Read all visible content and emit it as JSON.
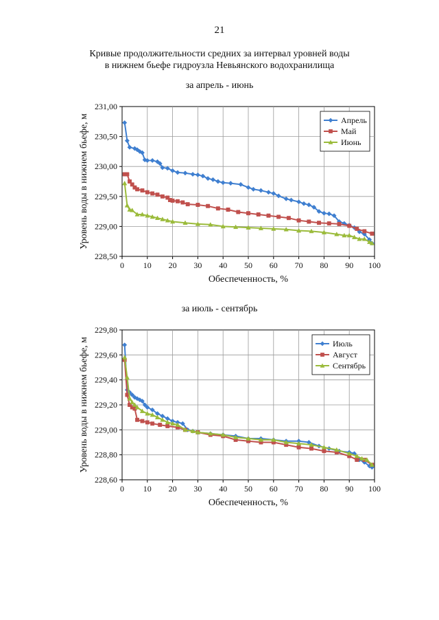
{
  "page": {
    "number": "21",
    "title_line1": "Кривые продолжительности средних за интервал уровней воды",
    "title_line2": "в нижнем бьефе гидроузла Невьянского водохранилища"
  },
  "colors": {
    "blue": "#3f7fd0",
    "red": "#c0504d",
    "green": "#9bbb3b"
  },
  "chart_data": [
    {
      "type": "line",
      "title": "за апрель - июнь",
      "xlabel": "Обеспеченность, %",
      "ylabel": "Уровень воды в нижнем бьефе, м",
      "xlim": [
        0,
        100
      ],
      "ylim": [
        228.5,
        231.0
      ],
      "xticks": [
        "0",
        "10",
        "20",
        "30",
        "40",
        "50",
        "60",
        "70",
        "80",
        "90",
        "100"
      ],
      "yticks": [
        "228,50",
        "229,00",
        "229,50",
        "230,00",
        "230,50",
        "231,00"
      ],
      "legend": "top-right",
      "series": [
        {
          "name": "Апрель",
          "color": "#3f7fd0",
          "marker": "diamond",
          "points": [
            [
              1,
              230.73
            ],
            [
              2,
              230.43
            ],
            [
              3,
              230.32
            ],
            [
              5,
              230.3
            ],
            [
              6,
              230.28
            ],
            [
              7,
              230.25
            ],
            [
              8,
              230.23
            ],
            [
              9,
              230.11
            ],
            [
              10,
              230.1
            ],
            [
              12,
              230.1
            ],
            [
              14,
              230.08
            ],
            [
              15,
              230.05
            ],
            [
              16,
              229.98
            ],
            [
              18,
              229.97
            ],
            [
              20,
              229.93
            ],
            [
              22,
              229.9
            ],
            [
              25,
              229.89
            ],
            [
              28,
              229.87
            ],
            [
              30,
              229.86
            ],
            [
              32,
              229.84
            ],
            [
              34,
              229.8
            ],
            [
              36,
              229.78
            ],
            [
              38,
              229.75
            ],
            [
              40,
              229.73
            ],
            [
              43,
              229.72
            ],
            [
              47,
              229.7
            ],
            [
              50,
              229.65
            ],
            [
              52,
              229.62
            ],
            [
              55,
              229.6
            ],
            [
              58,
              229.57
            ],
            [
              60,
              229.55
            ],
            [
              62,
              229.51
            ],
            [
              65,
              229.46
            ],
            [
              67,
              229.44
            ],
            [
              70,
              229.41
            ],
            [
              72,
              229.38
            ],
            [
              74,
              229.36
            ],
            [
              76,
              229.32
            ],
            [
              78,
              229.25
            ],
            [
              80,
              229.22
            ],
            [
              82,
              229.21
            ],
            [
              84,
              229.18
            ],
            [
              86,
              229.08
            ],
            [
              88,
              229.05
            ],
            [
              90,
              229.02
            ],
            [
              92,
              228.98
            ],
            [
              94,
              228.91
            ],
            [
              96,
              228.87
            ],
            [
              98,
              228.78
            ],
            [
              99,
              228.72
            ]
          ]
        },
        {
          "name": "Май",
          "color": "#c0504d",
          "marker": "square",
          "points": [
            [
              1,
              229.87
            ],
            [
              2,
              229.87
            ],
            [
              3,
              229.75
            ],
            [
              4,
              229.7
            ],
            [
              5,
              229.65
            ],
            [
              6,
              229.62
            ],
            [
              8,
              229.6
            ],
            [
              10,
              229.57
            ],
            [
              12,
              229.55
            ],
            [
              14,
              229.53
            ],
            [
              16,
              229.5
            ],
            [
              18,
              229.48
            ],
            [
              19,
              229.44
            ],
            [
              20,
              229.43
            ],
            [
              22,
              229.42
            ],
            [
              24,
              229.4
            ],
            [
              26,
              229.37
            ],
            [
              30,
              229.36
            ],
            [
              34,
              229.34
            ],
            [
              38,
              229.3
            ],
            [
              42,
              229.28
            ],
            [
              46,
              229.24
            ],
            [
              50,
              229.22
            ],
            [
              54,
              229.2
            ],
            [
              58,
              229.18
            ],
            [
              62,
              229.16
            ],
            [
              66,
              229.14
            ],
            [
              70,
              229.1
            ],
            [
              74,
              229.08
            ],
            [
              78,
              229.06
            ],
            [
              82,
              229.05
            ],
            [
              86,
              229.04
            ],
            [
              90,
              229.01
            ],
            [
              93,
              228.96
            ],
            [
              96,
              228.92
            ],
            [
              99,
              228.88
            ]
          ]
        },
        {
          "name": "Июнь",
          "color": "#9bbb3b",
          "marker": "triangle",
          "points": [
            [
              1,
              229.72
            ],
            [
              2,
              229.35
            ],
            [
              3,
              229.28
            ],
            [
              4,
              229.27
            ],
            [
              6,
              229.2
            ],
            [
              8,
              229.2
            ],
            [
              10,
              229.18
            ],
            [
              12,
              229.16
            ],
            [
              14,
              229.14
            ],
            [
              16,
              229.12
            ],
            [
              18,
              229.1
            ],
            [
              20,
              229.08
            ],
            [
              25,
              229.06
            ],
            [
              30,
              229.04
            ],
            [
              35,
              229.03
            ],
            [
              40,
              229.0
            ],
            [
              45,
              228.99
            ],
            [
              50,
              228.98
            ],
            [
              55,
              228.97
            ],
            [
              60,
              228.96
            ],
            [
              65,
              228.95
            ],
            [
              70,
              228.93
            ],
            [
              75,
              228.92
            ],
            [
              80,
              228.9
            ],
            [
              85,
              228.87
            ],
            [
              88,
              228.85
            ],
            [
              90,
              228.85
            ],
            [
              92,
              228.82
            ],
            [
              94,
              228.79
            ],
            [
              96,
              228.79
            ],
            [
              98,
              228.74
            ],
            [
              99,
              228.72
            ]
          ]
        }
      ]
    },
    {
      "type": "line",
      "title": "за июль - сентябрь",
      "xlabel": "Обеспеченность, %",
      "ylabel": "Уровень воды в нижнем бьефе, м",
      "xlim": [
        0,
        100
      ],
      "ylim": [
        228.6,
        229.8
      ],
      "xticks": [
        "0",
        "10",
        "20",
        "30",
        "40",
        "50",
        "60",
        "70",
        "80",
        "90",
        "100"
      ],
      "yticks": [
        "228,60",
        "228,80",
        "229,00",
        "229,20",
        "229,40",
        "229,60",
        "229,80"
      ],
      "legend": "top-right",
      "series": [
        {
          "name": "Июль",
          "color": "#3f7fd0",
          "marker": "diamond",
          "points": [
            [
              1,
              229.68
            ],
            [
              2,
              229.32
            ],
            [
              3,
              229.3
            ],
            [
              4,
              229.28
            ],
            [
              5,
              229.26
            ],
            [
              6,
              229.25
            ],
            [
              7,
              229.24
            ],
            [
              8,
              229.23
            ],
            [
              9,
              229.2
            ],
            [
              10,
              229.18
            ],
            [
              12,
              229.16
            ],
            [
              14,
              229.13
            ],
            [
              16,
              229.11
            ],
            [
              18,
              229.09
            ],
            [
              20,
              229.07
            ],
            [
              22,
              229.06
            ],
            [
              24,
              229.05
            ],
            [
              26,
              229.0
            ],
            [
              28,
              228.99
            ],
            [
              30,
              228.98
            ],
            [
              35,
              228.97
            ],
            [
              40,
              228.96
            ],
            [
              45,
              228.95
            ],
            [
              50,
              228.93
            ],
            [
              55,
              228.93
            ],
            [
              60,
              228.92
            ],
            [
              65,
              228.91
            ],
            [
              70,
              228.91
            ],
            [
              74,
              228.9
            ],
            [
              78,
              228.87
            ],
            [
              82,
              228.85
            ],
            [
              86,
              228.83
            ],
            [
              90,
              228.82
            ],
            [
              92,
              228.81
            ],
            [
              94,
              228.76
            ],
            [
              96,
              228.74
            ],
            [
              98,
              228.71
            ],
            [
              99,
              228.7
            ]
          ]
        },
        {
          "name": "Август",
          "color": "#c0504d",
          "marker": "square",
          "points": [
            [
              1,
              229.56
            ],
            [
              2,
              229.28
            ],
            [
              3,
              229.2
            ],
            [
              4,
              229.18
            ],
            [
              5,
              229.17
            ],
            [
              6,
              229.08
            ],
            [
              8,
              229.07
            ],
            [
              10,
              229.06
            ],
            [
              12,
              229.05
            ],
            [
              15,
              229.04
            ],
            [
              18,
              229.03
            ],
            [
              22,
              229.02
            ],
            [
              25,
              229.0
            ],
            [
              30,
              228.98
            ],
            [
              35,
              228.96
            ],
            [
              40,
              228.95
            ],
            [
              45,
              228.92
            ],
            [
              50,
              228.91
            ],
            [
              55,
              228.9
            ],
            [
              60,
              228.9
            ],
            [
              65,
              228.88
            ],
            [
              70,
              228.86
            ],
            [
              75,
              228.85
            ],
            [
              80,
              228.83
            ],
            [
              85,
              228.82
            ],
            [
              90,
              228.79
            ],
            [
              93,
              228.76
            ],
            [
              96,
              228.76
            ],
            [
              99,
              228.72
            ]
          ]
        },
        {
          "name": "Сентябрь",
          "color": "#9bbb3b",
          "marker": "triangle",
          "points": [
            [
              1,
              229.58
            ],
            [
              2,
              229.42
            ],
            [
              3,
              229.25
            ],
            [
              4,
              229.22
            ],
            [
              5,
              229.2
            ],
            [
              6,
              229.18
            ],
            [
              8,
              229.15
            ],
            [
              10,
              229.13
            ],
            [
              12,
              229.12
            ],
            [
              14,
              229.1
            ],
            [
              16,
              229.08
            ],
            [
              18,
              229.06
            ],
            [
              20,
              229.05
            ],
            [
              22,
              229.04
            ],
            [
              25,
              229.0
            ],
            [
              28,
              228.99
            ],
            [
              30,
              228.98
            ],
            [
              35,
              228.97
            ],
            [
              40,
              228.96
            ],
            [
              45,
              228.94
            ],
            [
              50,
              228.93
            ],
            [
              55,
              228.92
            ],
            [
              60,
              228.92
            ],
            [
              65,
              228.9
            ],
            [
              70,
              228.89
            ],
            [
              75,
              228.88
            ],
            [
              80,
              228.86
            ],
            [
              85,
              228.84
            ],
            [
              90,
              228.81
            ],
            [
              93,
              228.79
            ],
            [
              95,
              228.77
            ],
            [
              97,
              228.76
            ],
            [
              99,
              228.72
            ]
          ]
        }
      ]
    }
  ]
}
